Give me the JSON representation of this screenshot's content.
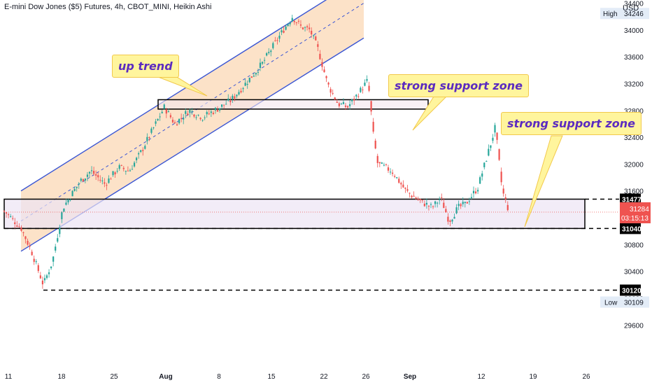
{
  "header": {
    "title": "E-mini Dow Jones ($5) Futures, 4h, CBOT_MINI, Heikin Ashi",
    "currency": "USD"
  },
  "annotations": {
    "up_trend": "up trend",
    "support_zone_1": "strong support zone",
    "support_zone_2": "strong support zone"
  },
  "colors": {
    "bull": "#26a69a",
    "bear": "#ef5350",
    "channel_line": "#3a56d4",
    "channel_fill": "#fbd8b5",
    "zone_fill": "#ece4f4",
    "callout_bg": "#fff59d",
    "callout_text": "#5b2bc0"
  },
  "chart_data": {
    "type": "candlestick",
    "style": "Heikin Ashi",
    "timeframe": "4h",
    "symbol": "E-mini Dow Jones ($5) Futures",
    "exchange": "CBOT_MINI",
    "y_axis": {
      "ticks": [
        29600,
        30000,
        30400,
        30800,
        31200,
        31600,
        32000,
        32400,
        32800,
        33200,
        33600,
        34000,
        34400
      ],
      "ylim": [
        29400,
        34800
      ]
    },
    "x_axis": {
      "ticks": [
        "11",
        "18",
        "25",
        "Aug",
        "8",
        "15",
        "22",
        "26",
        "Sep",
        "12",
        "19",
        "26"
      ]
    },
    "price_labels": {
      "high": {
        "label": "High",
        "value": 34246
      },
      "low": {
        "label": "Low",
        "value": 30109
      },
      "current": {
        "value": 31284,
        "countdown": "03:15:13"
      },
      "levels": [
        31477,
        31040,
        30120
      ]
    },
    "zones": [
      {
        "name": "strong support zone (upper)",
        "from": 32820,
        "to": 32960
      },
      {
        "name": "strong support zone (lower)",
        "from": 31040,
        "to": 31477
      }
    ],
    "channel": {
      "name": "up trend",
      "upper_start": 31600,
      "upper_end": 34800,
      "lower_start": 30700,
      "lower_end": 33880,
      "mid_start": 31150,
      "mid_end": 34400
    },
    "price_path": [
      [
        "11",
        31300
      ],
      [
        "13",
        31050
      ],
      [
        "14",
        30700
      ],
      [
        "15",
        30200
      ],
      [
        "16",
        30550
      ],
      [
        "18",
        31350
      ],
      [
        "20",
        31750
      ],
      [
        "21",
        31900
      ],
      [
        "22",
        31700
      ],
      [
        "25",
        31950
      ],
      [
        "27",
        31900
      ],
      [
        "28",
        32150
      ],
      [
        "Aug",
        32850
      ],
      [
        "2",
        32600
      ],
      [
        "4",
        32800
      ],
      [
        "5",
        32700
      ],
      [
        "8",
        32850
      ],
      [
        "9",
        32950
      ],
      [
        "11",
        33250
      ],
      [
        "12",
        33500
      ],
      [
        "15",
        34000
      ],
      [
        "16",
        34200
      ],
      [
        "17",
        34050
      ],
      [
        "18",
        34000
      ],
      [
        "19",
        33700
      ],
      [
        "22",
        33200
      ],
      [
        "23",
        32900
      ],
      [
        "24",
        32850
      ],
      [
        "25",
        33050
      ],
      [
        "26",
        33250
      ],
      [
        "26b",
        32400
      ],
      [
        "27",
        32000
      ],
      [
        "29",
        31900
      ],
      [
        "30",
        31600
      ],
      [
        "31",
        31450
      ],
      [
        "Sep",
        31350
      ],
      [
        "2",
        31500
      ],
      [
        "6",
        31150
      ],
      [
        "7",
        31350
      ],
      [
        "8",
        31400
      ],
      [
        "9",
        31650
      ],
      [
        "12",
        32250
      ],
      [
        "13",
        32550
      ],
      [
        "14",
        31600
      ],
      [
        "15",
        31284
      ]
    ]
  }
}
